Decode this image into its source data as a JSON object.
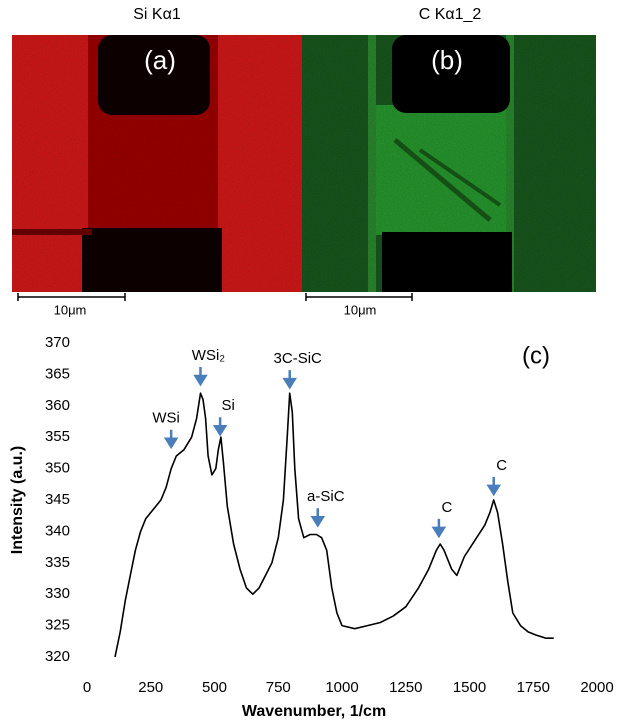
{
  "images": [
    {
      "title": "Si Kα1",
      "label": "(a)",
      "scale_bar": "10μm"
    },
    {
      "title": "C Kα1_2",
      "label": "(b)",
      "scale_bar": "10μm"
    }
  ],
  "chart_data": {
    "type": "line",
    "panel_label": "(c)",
    "x_label": "Wavenumber, 1/cm",
    "y_label": "Intensity (a.u.)",
    "xlim": [
      0,
      2000
    ],
    "xticks": [
      0,
      250,
      500,
      750,
      1000,
      1250,
      1500,
      1750,
      2000
    ],
    "ylim": [
      320,
      370
    ],
    "yticks": [
      320,
      325,
      330,
      335,
      340,
      345,
      350,
      355,
      360,
      365,
      370
    ],
    "grid": false,
    "series": [
      {
        "color": "#000000",
        "x": [
          110,
          130,
          150,
          170,
          190,
          210,
          230,
          260,
          290,
          310,
          330,
          350,
          380,
          410,
          430,
          445,
          455,
          465,
          475,
          490,
          505,
          515,
          525,
          535,
          550,
          575,
          600,
          625,
          650,
          675,
          700,
          725,
          750,
          770,
          785,
          795,
          805,
          815,
          830,
          850,
          875,
          900,
          920,
          940,
          960,
          980,
          1000,
          1050,
          1100,
          1150,
          1200,
          1250,
          1300,
          1340,
          1370,
          1385,
          1400,
          1430,
          1450,
          1480,
          1520,
          1560,
          1580,
          1595,
          1610,
          1630,
          1650,
          1670,
          1700,
          1730,
          1760,
          1800,
          1830
        ],
        "values": [
          320,
          324,
          329,
          333,
          337,
          340,
          342,
          343.5,
          345,
          347,
          350,
          352,
          353,
          355,
          358,
          362,
          361,
          358,
          352,
          349,
          350,
          353,
          355,
          351,
          344,
          338,
          334,
          331,
          330,
          331,
          333,
          335,
          339,
          345,
          355,
          362,
          359,
          350,
          342,
          339,
          339.5,
          339.5,
          339,
          337,
          331,
          327,
          325,
          324.5,
          325,
          325.5,
          326.5,
          328,
          331,
          334,
          337,
          338,
          337,
          334,
          333,
          336,
          338.5,
          341,
          343,
          345,
          343,
          338,
          332,
          327,
          325,
          324,
          323.5,
          323,
          323
        ]
      }
    ],
    "annotations": [
      {
        "text": "WSi",
        "x": 330,
        "y": 353
      },
      {
        "text": "WSi₂",
        "x": 445,
        "y": 363
      },
      {
        "text": "Si",
        "x": 522,
        "y": 355
      },
      {
        "text": "3C-SiC",
        "x": 795,
        "y": 362.5
      },
      {
        "text": "a-SiC",
        "x": 905,
        "y": 340.5
      },
      {
        "text": "C",
        "x": 1380,
        "y": 338.8
      },
      {
        "text": "C",
        "x": 1595,
        "y": 345.5
      }
    ]
  }
}
